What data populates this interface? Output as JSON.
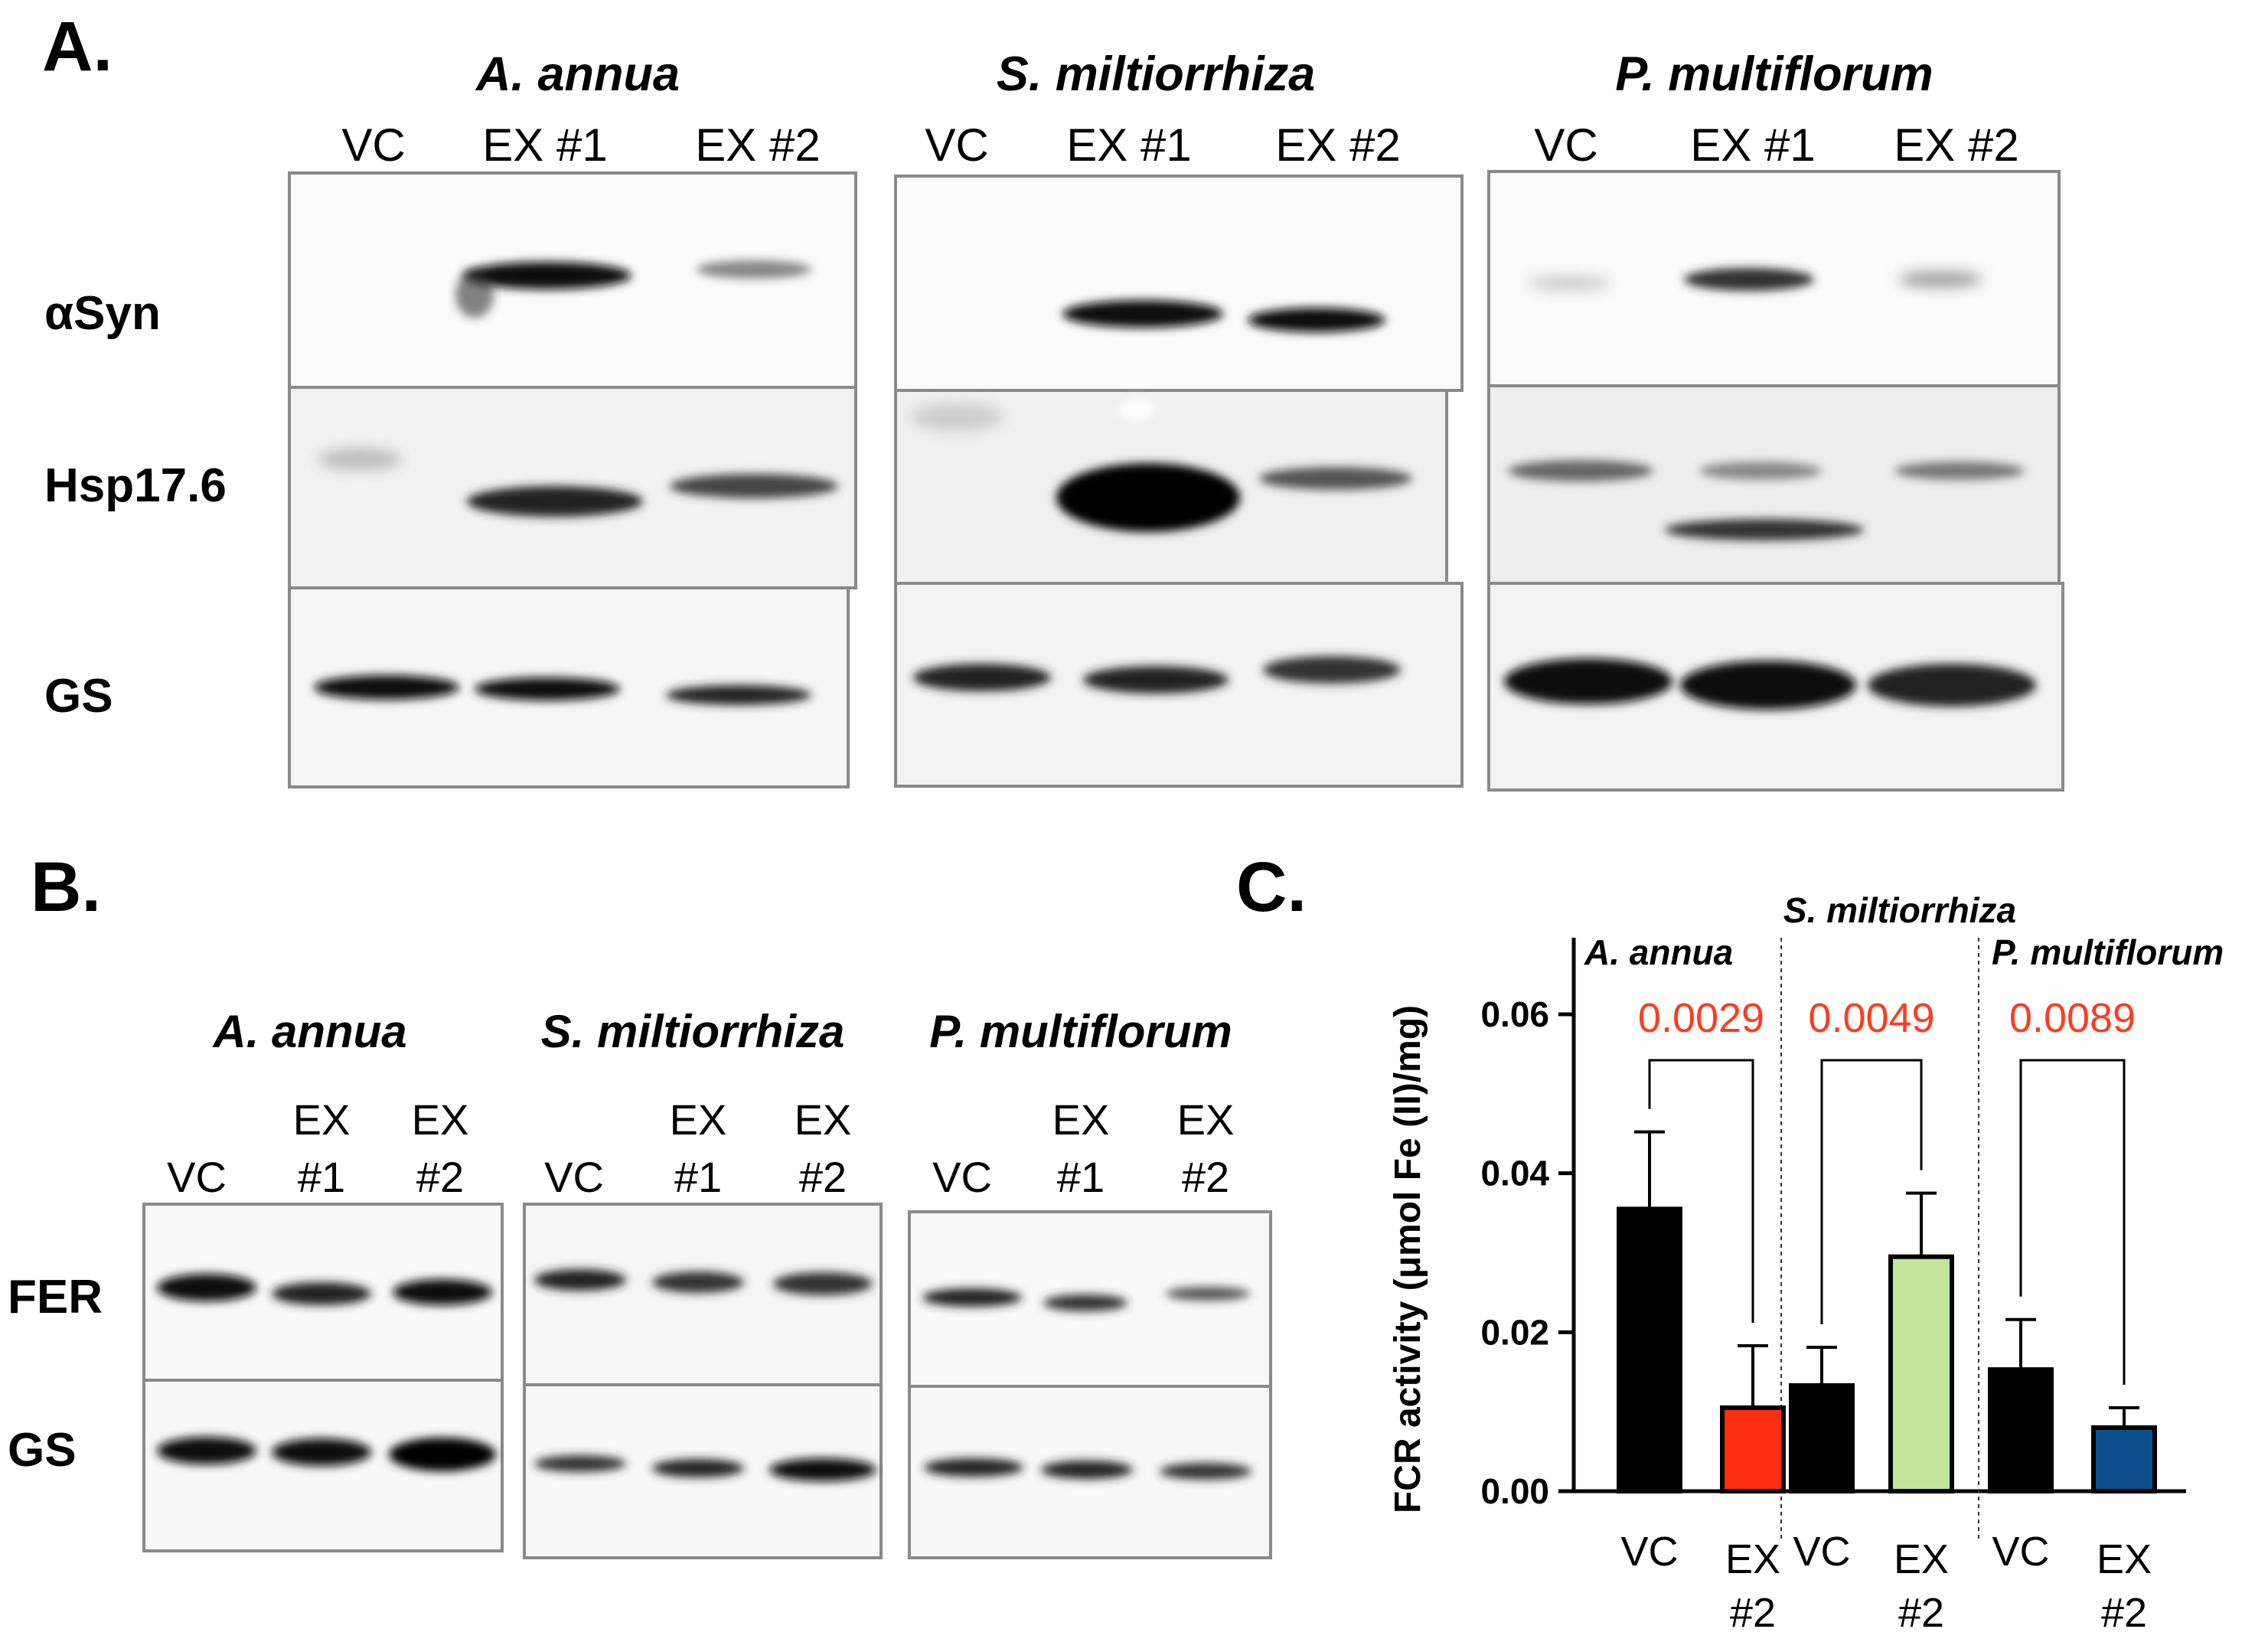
{
  "panel_a": {
    "letter": "A.",
    "species": [
      "A. annua",
      "S. miltiorrhiza",
      "P. multiflorum"
    ],
    "lanes": [
      "VC",
      "EX #1",
      "EX #2"
    ],
    "rows": [
      "αSyn",
      "Hsp17.6",
      "GS"
    ]
  },
  "panel_b": {
    "letter": "B.",
    "species": [
      "A. annua",
      "S. miltiorrhiza",
      "P. multiflorum"
    ],
    "lane_vc": "VC",
    "lane_ex_top": "EX",
    "lane_ex1_bottom": "#1",
    "lane_ex2_bottom": "#2",
    "rows": [
      "FER",
      "GS"
    ]
  },
  "panel_c": {
    "letter": "C.",
    "top_group_label": "S. miltiorrhiza",
    "group_labels": [
      "A. annua",
      "P. multiflorum"
    ],
    "pvalues": [
      "0.0029",
      "0.0049",
      "0.0089"
    ],
    "x_vc": "VC",
    "x_ex_top": "EX",
    "x_ex_bottom": "#2"
  },
  "chart_data": {
    "type": "bar",
    "ylabel": "FCR activity (μmol Fe (II)/mg)",
    "ylim": [
      0,
      0.07
    ],
    "yticks": [
      "0.00",
      "0.02",
      "0.04",
      "0.06"
    ],
    "categories": [
      "VC",
      "EX #2",
      "VC",
      "EX #2",
      "VC",
      "EX #2"
    ],
    "values": [
      0.0355,
      0.0105,
      0.0133,
      0.0295,
      0.0153,
      0.008
    ],
    "errors": [
      0.0097,
      0.0078,
      0.0048,
      0.008,
      0.0063,
      0.0025
    ],
    "colors": [
      "#000000",
      "#ff2d12",
      "#000000",
      "#c2e69a",
      "#000000",
      "#0d4f8c"
    ],
    "comparisons": [
      "0.0029",
      "0.0049",
      "0.0089"
    ],
    "pvalue_color": "#ff3b1f"
  }
}
